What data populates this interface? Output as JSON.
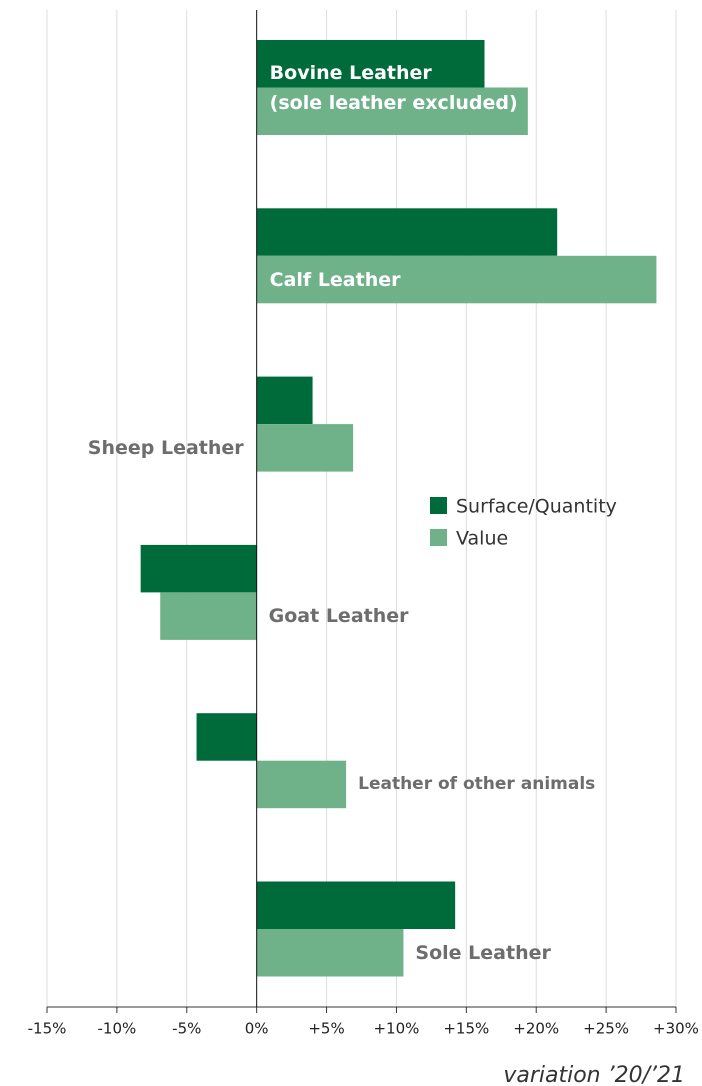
{
  "chart_data": {
    "type": "hbar",
    "xlabel": "variation ’20/’21",
    "categories": [
      "Bovine Leather\n(sole leather excluded)",
      "Calf Leather",
      "Sheep Leather",
      "Goat Leather",
      "Leather of other animals",
      "Sole Leather"
    ],
    "series": [
      {
        "name": "Surface/Quantity",
        "color": "#006b3a",
        "values": [
          16.3,
          21.5,
          4.0,
          -8.3,
          -4.3,
          14.2
        ]
      },
      {
        "name": "Value",
        "color": "#6fb28a",
        "values": [
          19.4,
          28.6,
          6.9,
          -6.9,
          6.4,
          10.5
        ]
      }
    ],
    "xlim": [
      -15,
      30
    ],
    "xticks": [
      {
        "value": -15,
        "label": "-15%"
      },
      {
        "value": -10,
        "label": "-10%"
      },
      {
        "value": -5,
        "label": "-5%"
      },
      {
        "value": 0,
        "label": "0%"
      },
      {
        "value": 5,
        "label": "+5%"
      },
      {
        "value": 10,
        "label": "+10%"
      },
      {
        "value": 15,
        "label": "+15%"
      },
      {
        "value": 20,
        "label": "+20%"
      },
      {
        "value": 25,
        "label": "+25%"
      },
      {
        "value": 30,
        "label": "+30%"
      }
    ],
    "grid": true
  }
}
